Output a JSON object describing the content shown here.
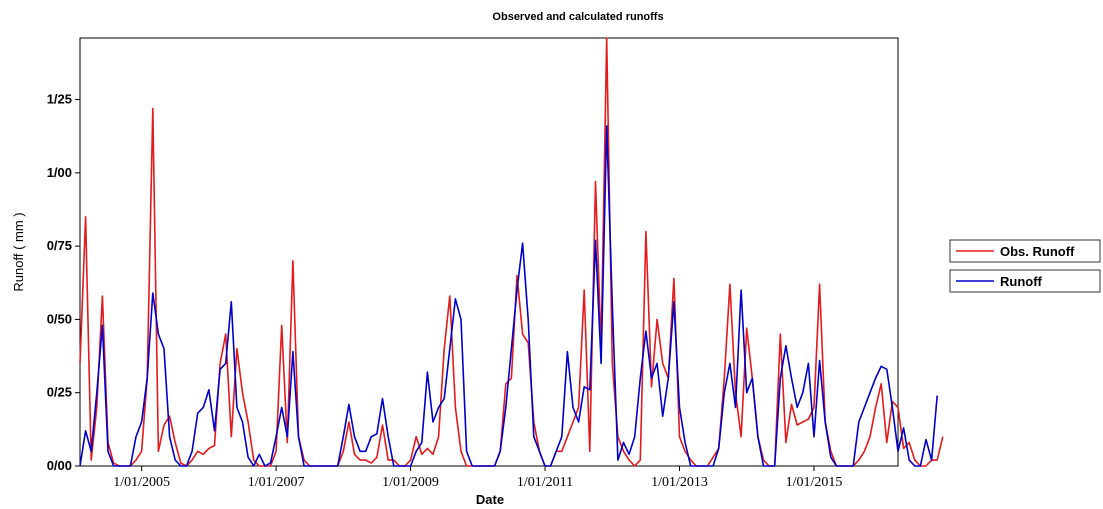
{
  "chart_data": {
    "type": "line",
    "title": "Observed and calculated runoffs",
    "xlabel": "Date",
    "ylabel": "Runoff ( mm )",
    "x_start": "2004-02",
    "x_step": "month",
    "xlim": [
      "2004-02",
      "2016-04"
    ],
    "ylim": [
      0,
      1.46
    ],
    "y_ticks": [
      0,
      0.25,
      0.5,
      0.75,
      1.0,
      1.25
    ],
    "y_tick_labels": [
      "0/00",
      "0/25",
      "0/50",
      "0/75",
      "1/00",
      "1/25"
    ],
    "x_ticks": [
      "2005-01",
      "2007-01",
      "2009-01",
      "2011-01",
      "2013-01",
      "2015-01"
    ],
    "x_tick_labels": [
      "1/01/2005",
      "1/01/2007",
      "1/01/2009",
      "1/01/2011",
      "1/01/2013",
      "1/01/2015"
    ],
    "grid": false,
    "legend_position": "right",
    "series": [
      {
        "name": "Obs. Runoff",
        "color": "#e41a1c",
        "values": [
          0.35,
          0.85,
          0.02,
          0.2,
          0.58,
          0.08,
          0.01,
          0.0,
          0.0,
          0.0,
          0.02,
          0.05,
          0.3,
          1.22,
          0.05,
          0.14,
          0.17,
          0.08,
          0.01,
          0.0,
          0.02,
          0.05,
          0.04,
          0.06,
          0.07,
          0.35,
          0.45,
          0.1,
          0.4,
          0.25,
          0.15,
          0.02,
          0.0,
          0.0,
          0.0,
          0.05,
          0.48,
          0.08,
          0.7,
          0.1,
          0.02,
          0.0,
          0.0,
          0.0,
          0.0,
          0.0,
          0.0,
          0.05,
          0.15,
          0.04,
          0.02,
          0.02,
          0.01,
          0.03,
          0.14,
          0.02,
          0.02,
          0.0,
          0.0,
          0.02,
          0.1,
          0.04,
          0.06,
          0.04,
          0.1,
          0.4,
          0.58,
          0.2,
          0.05,
          0.0,
          0.0,
          0.0,
          0.0,
          0.0,
          0.0,
          0.05,
          0.28,
          0.3,
          0.65,
          0.45,
          0.42,
          0.15,
          0.05,
          0.0,
          0.0,
          0.05,
          0.05,
          0.1,
          0.15,
          0.2,
          0.6,
          0.05,
          0.97,
          0.4,
          1.46,
          0.35,
          0.1,
          0.05,
          0.02,
          0.0,
          0.02,
          0.8,
          0.27,
          0.5,
          0.35,
          0.3,
          0.64,
          0.1,
          0.05,
          0.02,
          0.0,
          0.0,
          0.0,
          0.03,
          0.06,
          0.3,
          0.62,
          0.25,
          0.1,
          0.47,
          0.3,
          0.1,
          0.02,
          0.0,
          0.0,
          0.45,
          0.08,
          0.21,
          0.14,
          0.15,
          0.16,
          0.2,
          0.62,
          0.15,
          0.05,
          0.0,
          0.0,
          0.0,
          0.0,
          0.02,
          0.05,
          0.1,
          0.2,
          0.28,
          0.08,
          0.22,
          0.2,
          0.06,
          0.08,
          0.02,
          0.0,
          0.0,
          0.02,
          0.02,
          0.1
        ]
      },
      {
        "name": "Runoff",
        "color": "#0000cc",
        "values": [
          0.0,
          0.12,
          0.05,
          0.25,
          0.48,
          0.05,
          0.0,
          0.0,
          0.0,
          0.0,
          0.1,
          0.15,
          0.3,
          0.59,
          0.45,
          0.4,
          0.1,
          0.02,
          0.0,
          0.0,
          0.05,
          0.18,
          0.2,
          0.26,
          0.12,
          0.33,
          0.35,
          0.56,
          0.2,
          0.15,
          0.03,
          0.0,
          0.04,
          0.0,
          0.01,
          0.1,
          0.2,
          0.1,
          0.39,
          0.1,
          0.0,
          0.0,
          0.0,
          0.0,
          0.0,
          0.0,
          0.0,
          0.1,
          0.21,
          0.1,
          0.05,
          0.05,
          0.1,
          0.11,
          0.23,
          0.1,
          0.0,
          0.0,
          0.0,
          0.0,
          0.05,
          0.08,
          0.32,
          0.15,
          0.2,
          0.23,
          0.4,
          0.57,
          0.5,
          0.05,
          0.0,
          0.0,
          0.0,
          0.0,
          0.0,
          0.05,
          0.2,
          0.4,
          0.6,
          0.76,
          0.5,
          0.1,
          0.05,
          0.0,
          0.0,
          0.05,
          0.1,
          0.39,
          0.2,
          0.15,
          0.27,
          0.26,
          0.77,
          0.35,
          1.16,
          0.55,
          0.02,
          0.08,
          0.04,
          0.1,
          0.3,
          0.46,
          0.3,
          0.35,
          0.17,
          0.3,
          0.56,
          0.2,
          0.08,
          0.0,
          0.0,
          0.0,
          0.0,
          0.0,
          0.06,
          0.25,
          0.35,
          0.2,
          0.6,
          0.25,
          0.3,
          0.1,
          0.0,
          0.0,
          0.0,
          0.3,
          0.41,
          0.3,
          0.2,
          0.25,
          0.35,
          0.1,
          0.36,
          0.15,
          0.03,
          0.0,
          0.0,
          0.0,
          0.0,
          0.15,
          0.2,
          0.25,
          0.3,
          0.34,
          0.33,
          0.2,
          0.05,
          0.13,
          0.02,
          0.0,
          0.0,
          0.09,
          0.02,
          0.24
        ]
      }
    ]
  }
}
